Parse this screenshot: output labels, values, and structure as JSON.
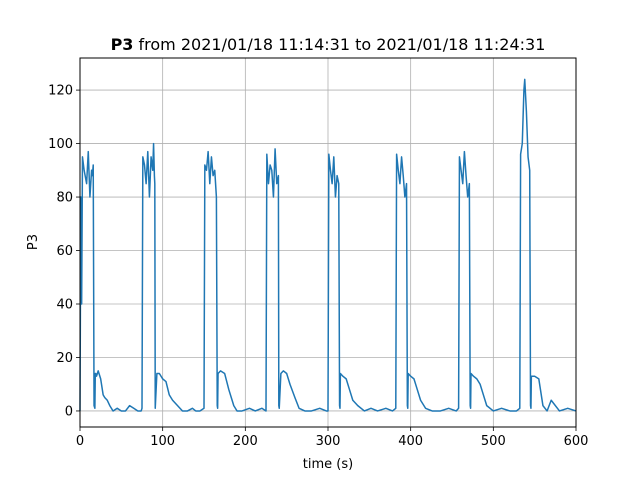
{
  "chart_data": {
    "type": "line",
    "title_bold": "P3",
    "title_rest": " from 2021/01/18 11:14:31 to 2021/01/18 11:24:31",
    "xlabel": "time (s)",
    "ylabel": "P3",
    "xlim": [
      0,
      600
    ],
    "ylim": [
      -6,
      132
    ],
    "xticks": [
      0,
      100,
      200,
      300,
      400,
      500,
      600
    ],
    "yticks": [
      0,
      20,
      40,
      60,
      80,
      100,
      120
    ],
    "grid": true,
    "series": [
      {
        "color": "#1f77b4",
        "x": [
          0,
          1,
          2,
          3,
          5,
          8,
          10,
          12,
          14,
          15,
          16,
          17,
          18,
          18.5,
          19,
          20,
          22,
          25,
          28,
          30,
          33,
          36,
          40,
          45,
          50,
          55,
          60,
          65,
          70,
          74,
          75,
          76,
          78,
          80,
          82,
          84,
          86,
          88,
          89,
          90,
          90.5,
          91,
          93,
          96,
          100,
          104,
          108,
          112,
          118,
          124,
          130,
          136,
          140,
          145,
          150,
          151,
          153,
          155,
          157,
          159,
          161,
          163,
          165,
          166,
          166.5,
          167,
          170,
          175,
          180,
          184,
          186,
          190,
          196,
          205,
          212,
          220,
          225,
          226,
          228,
          230,
          232,
          234,
          236,
          238,
          240,
          240.5,
          241,
          243,
          246,
          250,
          254,
          260,
          265,
          272,
          280,
          290,
          298,
          300,
          301,
          303,
          305,
          307,
          309,
          311,
          313,
          314,
          314.5,
          315,
          318,
          322,
          326,
          330,
          336,
          344,
          352,
          360,
          370,
          378,
          382,
          383,
          385,
          387,
          389,
          391,
          393,
          395,
          396,
          396.5,
          397,
          400,
          404,
          408,
          412,
          418,
          426,
          436,
          446,
          455,
          458,
          459,
          461,
          463,
          465,
          467,
          469,
          471,
          472,
          472.5,
          473,
          476,
          480,
          484,
          488,
          492,
          500,
          510,
          520,
          528,
          532,
          533,
          535,
          536,
          537,
          538,
          540,
          542,
          544,
          545,
          545.5,
          546,
          550,
          555,
          560,
          565,
          570,
          580,
          590,
          600
        ],
        "y": [
          0,
          80,
          40,
          95,
          90,
          85,
          97,
          80,
          90,
          88,
          92,
          2,
          1,
          14,
          14,
          13,
          15,
          12,
          6,
          5,
          4,
          2,
          0,
          1,
          0,
          0,
          2,
          1,
          0,
          0,
          1,
          95,
          92,
          85,
          97,
          80,
          95,
          90,
          100,
          88,
          85,
          1,
          14,
          14,
          12,
          11,
          6,
          4,
          2,
          0,
          0,
          1,
          0,
          0,
          1,
          92,
          90,
          97,
          85,
          95,
          88,
          90,
          80,
          2,
          1,
          14,
          15,
          14,
          8,
          4,
          2,
          0,
          0,
          1,
          0,
          1,
          0,
          96,
          85,
          92,
          90,
          80,
          98,
          85,
          88,
          2,
          1,
          14,
          15,
          14,
          10,
          5,
          1,
          0,
          0,
          1,
          0,
          0,
          96,
          90,
          85,
          95,
          80,
          88,
          85,
          2,
          1,
          14,
          13,
          12,
          8,
          4,
          2,
          0,
          1,
          0,
          1,
          0,
          1,
          96,
          90,
          85,
          95,
          88,
          80,
          85,
          2,
          1,
          14,
          13,
          12,
          8,
          4,
          1,
          0,
          0,
          1,
          0,
          1,
          95,
          90,
          85,
          97,
          88,
          80,
          85,
          2,
          1,
          14,
          13,
          12,
          10,
          6,
          2,
          0,
          1,
          0,
          0,
          1,
          96,
          100,
          110,
          120,
          124,
          112,
          95,
          90,
          2,
          1,
          13,
          13,
          12,
          2,
          0,
          4,
          0,
          1,
          0
        ]
      }
    ]
  }
}
